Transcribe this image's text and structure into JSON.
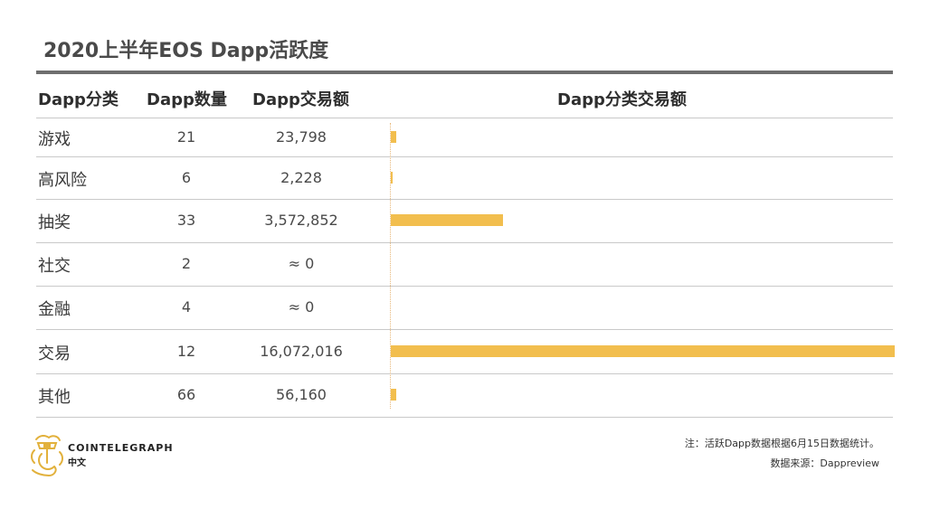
{
  "title": "2020上半年EOS Dapp活跃度",
  "table": {
    "headers": {
      "category": "Dapp分类",
      "count": "Dapp数量",
      "volume": "Dapp交易额",
      "chart": "Dapp分类交易额"
    },
    "rows": [
      {
        "category": "游戏",
        "count": "21",
        "volume": "23,798"
      },
      {
        "category": "高风险",
        "count": "6",
        "volume": "2,228"
      },
      {
        "category": "抽奖",
        "count": "33",
        "volume": "3,572,852"
      },
      {
        "category": "社交",
        "count": "2",
        "volume": "≈ 0"
      },
      {
        "category": "金融",
        "count": "4",
        "volume": "≈ 0"
      },
      {
        "category": "交易",
        "count": "12",
        "volume": "16,072,016"
      },
      {
        "category": "其他",
        "count": "66",
        "volume": "56,160"
      }
    ]
  },
  "chart_data": {
    "type": "bar",
    "orientation": "horizontal",
    "title": "Dapp分类交易额",
    "categories": [
      "游戏",
      "高风险",
      "抽奖",
      "社交",
      "金融",
      "交易",
      "其他"
    ],
    "values": [
      23798,
      2228,
      3572852,
      0,
      0,
      16072016,
      56160
    ],
    "xlim": [
      0,
      16072016
    ],
    "bar_color": "#f2be4e",
    "grid": false
  },
  "footer": {
    "brand": "COINTELEGRAPH",
    "brand_sub": "中文",
    "note": "注：活跃Dapp数据根据6月15日数据统计。",
    "source": "数据来源：Dappreview"
  },
  "colors": {
    "bar": "#f2be4e",
    "title_rule": "#6e6e6e",
    "logo": "#e2b13c"
  },
  "icons": {
    "logo": "cointelegraph-logo-icon"
  }
}
